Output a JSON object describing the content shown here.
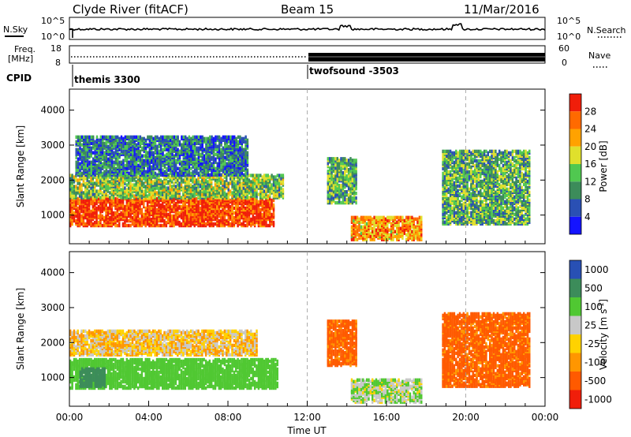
{
  "header": {
    "station": "Clyde River (fitACF)",
    "beam": "Beam 15",
    "date": "11/Mar/2016"
  },
  "top_panels": {
    "nsky_label": "N.Sky",
    "nsky_ticks": [
      "10^5",
      "10^0"
    ],
    "nsearch_label": "N.Search",
    "nsearch_ticks": [
      "10^5",
      "10^0"
    ],
    "freq_label": "Freq.",
    "freq_unit": "[MHz]",
    "freq_ticks": [
      "18",
      "8"
    ],
    "nave_label": "Nave",
    "nave_ticks": [
      "60",
      "0"
    ],
    "cpid_label": "CPID",
    "cpid_segments": [
      {
        "name": "themis 3300",
        "start_hour": 0
      },
      {
        "name": "twofsound -3503",
        "start_hour": 12
      }
    ]
  },
  "chart_data": [
    {
      "type": "heatmap",
      "title": "",
      "ylabel": "Slant Range [km]",
      "xlabel": "",
      "x_range_hours_ut": [
        0,
        24
      ],
      "ylim_km": [
        180,
        4600
      ],
      "yticks": [
        1000,
        2000,
        3000,
        4000
      ],
      "colorbar": {
        "label": "Power [dB]",
        "ticks": [
          "4",
          "8",
          "12",
          "16",
          "20",
          "24",
          "28"
        ],
        "range": [
          0,
          31
        ],
        "colors": [
          "#1414ff",
          "#2a50b4",
          "#3c8c5a",
          "#50c850",
          "#e0e02c",
          "#ffa200",
          "#ff6a00",
          "#f01e0a"
        ]
      },
      "echo_regions": [
        {
          "t0": 0.0,
          "t1": 10.3,
          "r0": 650,
          "r1": 1450,
          "value": 28
        },
        {
          "t0": 0.0,
          "t1": 10.8,
          "r0": 1450,
          "r1": 2100,
          "value": 14
        },
        {
          "t0": 0.3,
          "t1": 9.0,
          "r0": 2100,
          "r1": 3200,
          "value": 8
        },
        {
          "t0": 13.0,
          "t1": 14.5,
          "r0": 1300,
          "r1": 2600,
          "value": 12
        },
        {
          "t0": 14.2,
          "t1": 17.8,
          "r0": 250,
          "r1": 900,
          "value": 22
        },
        {
          "t0": 18.8,
          "t1": 23.2,
          "r0": 700,
          "r1": 2800,
          "value": 12
        }
      ]
    },
    {
      "type": "heatmap",
      "title": "",
      "ylabel": "Slant Range [km]",
      "xlabel": "Time UT",
      "x_range_hours_ut": [
        0,
        24
      ],
      "xticks": [
        "00:00",
        "04:00",
        "08:00",
        "12:00",
        "16:00",
        "20:00",
        "00:00"
      ],
      "ylim_km": [
        180,
        4600
      ],
      "yticks": [
        1000,
        2000,
        3000,
        4000
      ],
      "colorbar": {
        "label": "Velocity [m s^-1]",
        "ticks": [
          "1000",
          "500",
          "100",
          "25",
          "-25",
          "-100",
          "-500",
          "-1000"
        ],
        "colors": [
          "#2850b4",
          "#3c8c5a",
          "#50c832",
          "#c8c8c8",
          "#ffd200",
          "#ff9600",
          "#ff5a00",
          "#f01e0a"
        ]
      },
      "echo_regions": [
        {
          "t0": 0.0,
          "t1": 10.5,
          "r0": 650,
          "r1": 1500,
          "value": 200
        },
        {
          "t0": 0.5,
          "t1": 1.8,
          "r0": 700,
          "r1": 1200,
          "value": 700
        },
        {
          "t0": 0.0,
          "t1": 9.5,
          "r0": 1600,
          "r1": 2300,
          "value": 0
        },
        {
          "t0": 13.0,
          "t1": 14.5,
          "r0": 1300,
          "r1": 2600,
          "value": -150
        },
        {
          "t0": 14.2,
          "t1": 17.8,
          "r0": 250,
          "r1": 900,
          "value": 80
        },
        {
          "t0": 18.8,
          "t1": 23.2,
          "r0": 700,
          "r1": 2800,
          "value": -150
        }
      ]
    }
  ]
}
